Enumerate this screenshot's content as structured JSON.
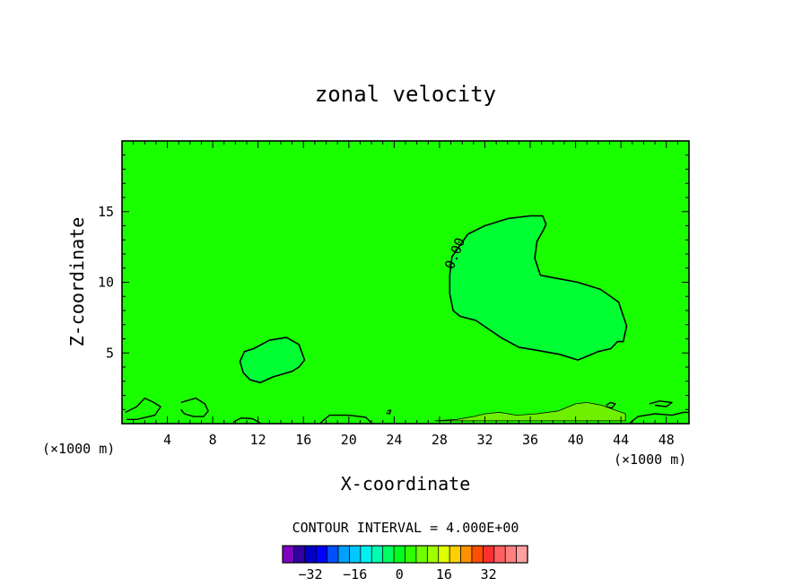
{
  "chart_data": {
    "type": "contour",
    "title": "zonal velocity",
    "xlabel": "X-coordinate",
    "ylabel": "Z-coordinate",
    "x_unit_left": "(×1000 m)",
    "x_unit_right": "(×1000 m)",
    "xlim": [
      0,
      50
    ],
    "ylim": [
      0,
      20
    ],
    "xticks": [
      4,
      8,
      12,
      16,
      20,
      24,
      28,
      32,
      36,
      40,
      44,
      48
    ],
    "yticks": [
      5,
      10,
      15
    ],
    "background_color": "#19ff00",
    "contour_label": "0.00",
    "contour_interval_text": "CONTOUR INTERVAL = 4.000E+00",
    "regions": [
      {
        "name": "positive-region-upper",
        "level": 0,
        "color": "#00ff33",
        "points": [
          [
            28.9,
            10.5
          ],
          [
            29.1,
            11.8
          ],
          [
            30.5,
            13.4
          ],
          [
            32,
            14
          ],
          [
            34,
            14.5
          ],
          [
            36,
            14.7
          ],
          [
            37.1,
            14.7
          ],
          [
            37.4,
            14.1
          ],
          [
            37.1,
            13.6
          ],
          [
            36.6,
            12.9
          ],
          [
            36.4,
            11.7
          ],
          [
            36.9,
            10.5
          ],
          [
            38.2,
            10.3
          ],
          [
            40.2,
            10
          ],
          [
            42.2,
            9.5
          ],
          [
            43.8,
            8.6
          ],
          [
            44.5,
            6.9
          ],
          [
            44.2,
            5.8
          ],
          [
            43.7,
            5.8
          ],
          [
            43.1,
            5.3
          ],
          [
            42,
            5.1
          ],
          [
            40.2,
            4.5
          ],
          [
            38.6,
            4.9
          ],
          [
            36.5,
            5.2
          ],
          [
            35,
            5.4
          ],
          [
            33.4,
            6.1
          ],
          [
            31.2,
            7.3
          ],
          [
            29.8,
            7.6
          ],
          [
            29.2,
            8
          ],
          [
            28.9,
            9.2
          ]
        ]
      },
      {
        "name": "positive-region-lower",
        "level": 0,
        "color": "#00ff33",
        "points": [
          [
            10.4,
            4.4
          ],
          [
            10.8,
            5.1
          ],
          [
            11.6,
            5.3
          ],
          [
            13,
            5.9
          ],
          [
            14.5,
            6.1
          ],
          [
            15.6,
            5.6
          ],
          [
            16.1,
            4.5
          ],
          [
            15.6,
            4
          ],
          [
            15,
            3.7
          ],
          [
            13.3,
            3.3
          ],
          [
            12.2,
            2.9
          ],
          [
            11.3,
            3.1
          ],
          [
            10.7,
            3.6
          ]
        ]
      },
      {
        "name": "near-surface-band",
        "level": 4,
        "color": "#6ff000",
        "points": [
          [
            27.6,
            0.2
          ],
          [
            29.5,
            0.3
          ],
          [
            31,
            0.5
          ],
          [
            32,
            0.7
          ],
          [
            33.3,
            0.8
          ],
          [
            34.8,
            0.6
          ],
          [
            36.6,
            0.7
          ],
          [
            38.5,
            0.9
          ],
          [
            40,
            1.4
          ],
          [
            41,
            1.5
          ],
          [
            42.3,
            1.3
          ],
          [
            44.4,
            0.7
          ],
          [
            44.4,
            0.2
          ]
        ]
      }
    ],
    "surface_islands": [
      {
        "name": "surface-island-1",
        "points": [
          [
            0.3,
            0.8
          ],
          [
            1.3,
            1.2
          ],
          [
            2,
            1.8
          ],
          [
            2.8,
            1.5
          ],
          [
            3.4,
            1.2
          ],
          [
            2.9,
            0.6
          ],
          [
            2.4,
            0.5
          ],
          [
            1.3,
            0.3
          ],
          [
            0.4,
            0.3
          ]
        ]
      },
      {
        "name": "surface-island-2",
        "points": [
          [
            5.2,
            1.5
          ],
          [
            6.5,
            1.8
          ],
          [
            7.3,
            1.4
          ],
          [
            7.6,
            0.9
          ],
          [
            7.2,
            0.5
          ],
          [
            6.3,
            0.5
          ],
          [
            5.5,
            0.7
          ],
          [
            5.2,
            1
          ]
        ]
      },
      {
        "name": "surface-island-3",
        "points": [
          [
            9.8,
            0.1
          ],
          [
            10.5,
            0.4
          ],
          [
            11.5,
            0.35
          ],
          [
            12.2,
            0.05
          ]
        ]
      },
      {
        "name": "surface-island-4",
        "points": [
          [
            17.5,
            0.05
          ],
          [
            18.3,
            0.6
          ],
          [
            20,
            0.6
          ],
          [
            21.5,
            0.45
          ],
          [
            22,
            0.05
          ]
        ]
      },
      {
        "name": "surface-island-5",
        "points": [
          [
            44.8,
            0.05
          ],
          [
            45.5,
            0.5
          ],
          [
            47,
            0.7
          ],
          [
            48.5,
            0.6
          ],
          [
            49.5,
            0.8
          ],
          [
            50,
            0.8
          ]
        ]
      },
      {
        "name": "surface-island-6",
        "points": [
          [
            42.7,
            1.3
          ],
          [
            43.1,
            1.5
          ],
          [
            43.5,
            1.4
          ],
          [
            43.2,
            1.1
          ],
          [
            42.7,
            1.2
          ]
        ]
      },
      {
        "name": "surface-island-7",
        "points": [
          [
            46.5,
            1.4
          ],
          [
            47.4,
            1.6
          ],
          [
            48.5,
            1.5
          ],
          [
            48,
            1.2
          ],
          [
            47,
            1.3
          ]
        ]
      },
      {
        "name": "surface-island-8",
        "points": [
          [
            23.4,
            0.9
          ],
          [
            23.7,
            0.95
          ],
          [
            23.6,
            0.7
          ],
          [
            23.3,
            0.75
          ]
        ]
      }
    ],
    "colorbar": {
      "colors": [
        "#8000c0",
        "#3000a0",
        "#0000c8",
        "#0000ff",
        "#0050ff",
        "#00a0ff",
        "#00c8ff",
        "#00f0f0",
        "#00ffb0",
        "#00ff60",
        "#00ff20",
        "#30ff00",
        "#70ff00",
        "#a0ff00",
        "#e0ff00",
        "#ffd000",
        "#ff9000",
        "#ff5000",
        "#ff3030",
        "#ff6060",
        "#ff8080",
        "#ffa0a0"
      ],
      "ticks": [
        {
          "label": "−32",
          "index": 2
        },
        {
          "label": "−16",
          "index": 6
        },
        {
          "label": "0",
          "index": 10
        },
        {
          "label": "16",
          "index": 14
        },
        {
          "label": "32",
          "index": 18
        }
      ]
    }
  }
}
